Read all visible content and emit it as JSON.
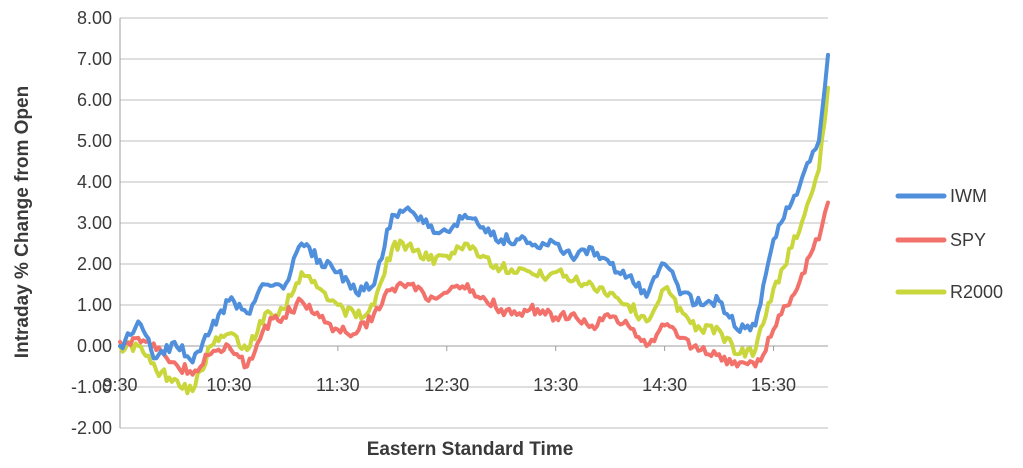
{
  "chart_data": {
    "type": "line",
    "title": "",
    "xlabel": "Eastern Standard Time",
    "ylabel": "Intraday % Change from Open",
    "x_range": [
      "9:30",
      "16:00"
    ],
    "ylim": [
      -2,
      8
    ],
    "y_ticks": [
      "8.00",
      "7.00",
      "6.00",
      "5.00",
      "4.00",
      "3.00",
      "2.00",
      "1.00",
      "0.00",
      "-1.00",
      "-2.00"
    ],
    "x_ticks": [
      "9:30",
      "10:30",
      "11:30",
      "12:30",
      "13:30",
      "14:30",
      "15:30"
    ],
    "grid": "horizontal",
    "legend_position": "right",
    "colors": {
      "IWM": "#4f8fdc",
      "SPY": "#f2716a",
      "R2000": "#c9d63c"
    },
    "series": [
      {
        "name": "IWM",
        "x": [
          "9:30",
          "9:40",
          "9:50",
          "10:00",
          "10:10",
          "10:20",
          "10:30",
          "10:40",
          "10:50",
          "11:00",
          "11:10",
          "11:20",
          "11:30",
          "11:40",
          "11:50",
          "12:00",
          "12:10",
          "12:20",
          "12:30",
          "12:40",
          "12:50",
          "13:00",
          "13:10",
          "13:20",
          "13:30",
          "13:40",
          "13:50",
          "14:00",
          "14:10",
          "14:20",
          "14:30",
          "14:40",
          "14:50",
          "15:00",
          "15:10",
          "15:20",
          "15:30",
          "15:40",
          "15:50",
          "15:55",
          "16:00"
        ],
        "values": [
          0.0,
          0.6,
          -0.3,
          0.1,
          -0.4,
          0.4,
          1.1,
          0.8,
          1.5,
          1.4,
          2.5,
          2.1,
          1.8,
          1.3,
          1.5,
          3.2,
          3.3,
          2.9,
          2.8,
          3.2,
          2.9,
          2.6,
          2.6,
          2.4,
          2.5,
          2.1,
          2.4,
          2.0,
          1.7,
          1.2,
          2.0,
          1.3,
          1.0,
          1.1,
          0.4,
          0.5,
          2.6,
          3.5,
          4.5,
          5.0,
          7.1
        ]
      },
      {
        "name": "SPY",
        "x": [
          "9:30",
          "9:40",
          "9:50",
          "10:00",
          "10:10",
          "10:20",
          "10:30",
          "10:40",
          "10:50",
          "11:00",
          "11:10",
          "11:20",
          "11:30",
          "11:40",
          "11:50",
          "12:00",
          "12:10",
          "12:20",
          "12:30",
          "12:40",
          "12:50",
          "13:00",
          "13:10",
          "13:20",
          "13:30",
          "13:40",
          "13:50",
          "14:00",
          "14:10",
          "14:20",
          "14:30",
          "14:40",
          "14:50",
          "15:00",
          "15:10",
          "15:20",
          "15:30",
          "15:40",
          "15:50",
          "15:55",
          "16:00"
        ],
        "values": [
          0.1,
          0.2,
          -0.1,
          -0.4,
          -0.7,
          -0.2,
          0.0,
          -0.5,
          0.5,
          0.7,
          1.1,
          0.7,
          0.4,
          0.3,
          0.8,
          1.4,
          1.5,
          1.1,
          1.3,
          1.4,
          1.2,
          0.9,
          0.8,
          0.9,
          0.7,
          0.8,
          0.5,
          0.7,
          0.5,
          0.0,
          0.5,
          0.2,
          -0.1,
          -0.2,
          -0.5,
          -0.5,
          0.4,
          1.2,
          2.2,
          2.6,
          3.5
        ]
      },
      {
        "name": "R2000",
        "x": [
          "9:30",
          "9:40",
          "9:50",
          "10:00",
          "10:10",
          "10:20",
          "10:30",
          "10:40",
          "10:50",
          "11:00",
          "11:10",
          "11:20",
          "11:30",
          "11:40",
          "11:50",
          "12:00",
          "12:10",
          "12:20",
          "12:30",
          "12:40",
          "12:50",
          "13:00",
          "13:10",
          "13:20",
          "13:30",
          "13:40",
          "13:50",
          "14:00",
          "14:10",
          "14:20",
          "14:30",
          "14:40",
          "14:50",
          "15:00",
          "15:10",
          "15:20",
          "15:30",
          "15:40",
          "15:50",
          "15:55",
          "16:00"
        ],
        "values": [
          0.0,
          0.0,
          -0.6,
          -0.8,
          -1.1,
          0.0,
          0.3,
          -0.1,
          0.8,
          0.9,
          1.8,
          1.4,
          1.0,
          0.7,
          1.0,
          2.4,
          2.5,
          2.1,
          2.2,
          2.5,
          2.2,
          1.9,
          1.9,
          1.7,
          1.8,
          1.6,
          1.5,
          1.3,
          1.0,
          0.6,
          1.4,
          0.8,
          0.4,
          0.4,
          -0.2,
          -0.1,
          1.4,
          2.4,
          3.6,
          4.3,
          6.3
        ]
      }
    ]
  }
}
